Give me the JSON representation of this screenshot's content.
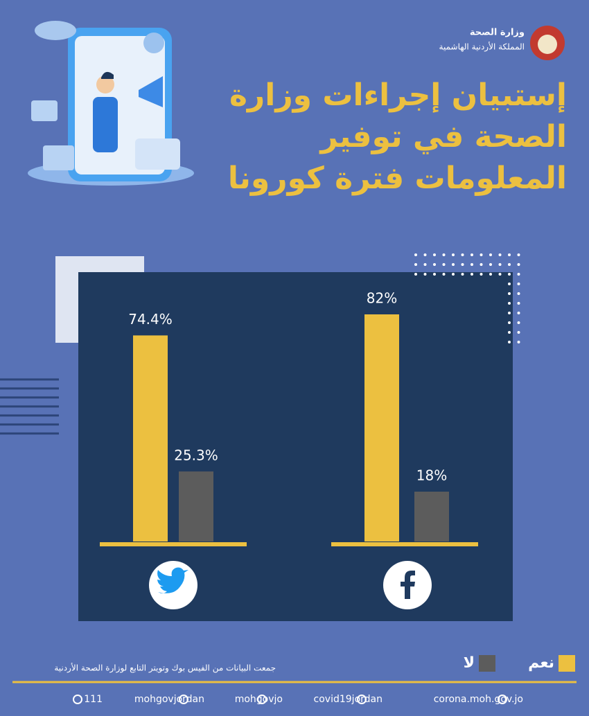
{
  "header": {
    "ministry": "وزارة الصحة",
    "kingdom": "المملكة الأردنية الهاشمية"
  },
  "title_lines": [
    "إستبيان إجراءات وزارة",
    "الصحة في توفير",
    "المعلومات فترة كورونا"
  ],
  "chart_data": {
    "type": "bar",
    "categories": [
      null,
      null
    ],
    "series": [
      {
        "name": "نعم",
        "color": "#ecc040",
        "values": [
          74.4,
          82
        ],
        "value_labels": [
          "74.4%",
          "82%"
        ]
      },
      {
        "name": "لا",
        "color": "#5c5c5c",
        "values": [
          25.3,
          18
        ],
        "value_labels": [
          "25.3%",
          "18%"
        ]
      }
    ]
  },
  "footer": {
    "source": "جمعت البيانات من الفيس بوك وتويتر التابع لوزارة الصحة الأردنية",
    "contacts": [
      "111",
      "mohgovjordan",
      "mohgovjo",
      "covid19jordan",
      "corona.moh.gov.jo"
    ]
  }
}
